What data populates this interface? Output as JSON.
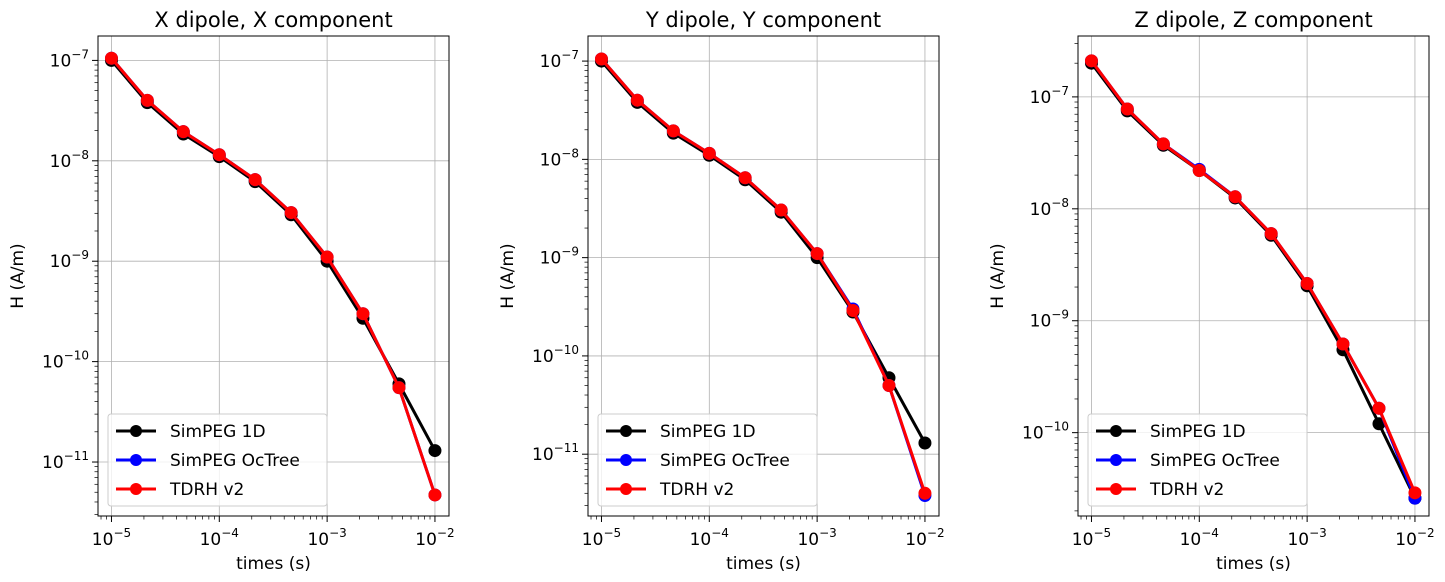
{
  "chart_data": [
    {
      "type": "line",
      "title": "X dipole, X component",
      "xlabel": "times (s)",
      "ylabel": "H (A/m)",
      "xscale": "log",
      "yscale": "log",
      "xlim": [
        7.5e-06,
        0.0135
      ],
      "ylim": [
        2.9e-12,
        1.75e-07
      ],
      "xticks": [
        1e-05,
        0.0001,
        0.001,
        0.01
      ],
      "xtick_labels": [
        {
          "base": "10",
          "exp": "−5"
        },
        {
          "base": "10",
          "exp": "−4"
        },
        {
          "base": "10",
          "exp": "−3"
        },
        {
          "base": "10",
          "exp": "−2"
        }
      ],
      "yticks": [
        1e-11,
        1e-10,
        1e-09,
        1e-08,
        1e-07
      ],
      "ytick_labels": [
        {
          "base": "10",
          "exp": "−11"
        },
        {
          "base": "10",
          "exp": "−10"
        },
        {
          "base": "10",
          "exp": "−9"
        },
        {
          "base": "10",
          "exp": "−8"
        },
        {
          "base": "10",
          "exp": "−7"
        }
      ],
      "grid": true,
      "legend_position": "lower-left",
      "x": [
        1e-05,
        2.15e-05,
        4.64e-05,
        0.0001,
        0.000215,
        0.000464,
        0.001,
        0.00215,
        0.00464,
        0.01
      ],
      "series": [
        {
          "name": "SimPEG 1D",
          "color": "#000000",
          "values": [
            1e-07,
            3.8e-08,
            1.85e-08,
            1.1e-08,
            6.2e-09,
            2.9e-09,
            1e-09,
            2.7e-10,
            6e-11,
            1.3e-11
          ]
        },
        {
          "name": "SimPEG OcTree",
          "color": "#0000ff",
          "values": [
            1.05e-07,
            4e-08,
            1.95e-08,
            1.15e-08,
            6.5e-09,
            3.05e-09,
            1.1e-09,
            3e-10,
            5.5e-11,
            4.7e-12
          ]
        },
        {
          "name": "TDRH v2",
          "color": "#ff0000",
          "values": [
            1.05e-07,
            4e-08,
            1.95e-08,
            1.15e-08,
            6.5e-09,
            3.05e-09,
            1.1e-09,
            3e-10,
            5.5e-11,
            4.7e-12
          ]
        }
      ]
    },
    {
      "type": "line",
      "title": "Y dipole, Y component",
      "xlabel": "times (s)",
      "ylabel": "H (A/m)",
      "xscale": "log",
      "yscale": "log",
      "xlim": [
        7.5e-06,
        0.0135
      ],
      "ylim": [
        2.35e-12,
        1.8e-07
      ],
      "xticks": [
        1e-05,
        0.0001,
        0.001,
        0.01
      ],
      "xtick_labels": [
        {
          "base": "10",
          "exp": "−5"
        },
        {
          "base": "10",
          "exp": "−4"
        },
        {
          "base": "10",
          "exp": "−3"
        },
        {
          "base": "10",
          "exp": "−2"
        }
      ],
      "yticks": [
        1e-11,
        1e-10,
        1e-09,
        1e-08,
        1e-07
      ],
      "ytick_labels": [
        {
          "base": "10",
          "exp": "−11"
        },
        {
          "base": "10",
          "exp": "−10"
        },
        {
          "base": "10",
          "exp": "−9"
        },
        {
          "base": "10",
          "exp": "−8"
        },
        {
          "base": "10",
          "exp": "−7"
        }
      ],
      "grid": true,
      "legend_position": "lower-left",
      "x": [
        1e-05,
        2.15e-05,
        4.64e-05,
        0.0001,
        0.000215,
        0.000464,
        0.001,
        0.00215,
        0.00464,
        0.01
      ],
      "series": [
        {
          "name": "SimPEG 1D",
          "color": "#000000",
          "values": [
            1e-07,
            3.8e-08,
            1.85e-08,
            1.1e-08,
            6.2e-09,
            2.9e-09,
            1e-09,
            2.8e-10,
            6e-11,
            1.3e-11
          ]
        },
        {
          "name": "SimPEG OcTree",
          "color": "#0000ff",
          "values": [
            1.05e-07,
            4e-08,
            1.95e-08,
            1.15e-08,
            6.5e-09,
            3.05e-09,
            1.1e-09,
            3e-10,
            5e-11,
            3.8e-12
          ]
        },
        {
          "name": "TDRH v2",
          "color": "#ff0000",
          "values": [
            1.05e-07,
            4e-08,
            1.95e-08,
            1.15e-08,
            6.5e-09,
            3.05e-09,
            1.1e-09,
            2.9e-10,
            5e-11,
            4e-12
          ]
        }
      ]
    },
    {
      "type": "line",
      "title": "Z dipole, Z component",
      "xlabel": "times (s)",
      "ylabel": "H (A/m)",
      "xscale": "log",
      "yscale": "log",
      "xlim": [
        7.5e-06,
        0.0135
      ],
      "ylim": [
        1.8e-11,
        3.5e-07
      ],
      "xticks": [
        1e-05,
        0.0001,
        0.001,
        0.01
      ],
      "xtick_labels": [
        {
          "base": "10",
          "exp": "−5"
        },
        {
          "base": "10",
          "exp": "−4"
        },
        {
          "base": "10",
          "exp": "−3"
        },
        {
          "base": "10",
          "exp": "−2"
        }
      ],
      "yticks": [
        1e-10,
        1e-09,
        1e-08,
        1e-07
      ],
      "ytick_labels": [
        {
          "base": "10",
          "exp": "−10"
        },
        {
          "base": "10",
          "exp": "−9"
        },
        {
          "base": "10",
          "exp": "−8"
        },
        {
          "base": "10",
          "exp": "−7"
        }
      ],
      "grid": true,
      "legend_position": "lower-left",
      "x": [
        1e-05,
        2.15e-05,
        4.64e-05,
        0.0001,
        0.000215,
        0.000464,
        0.001,
        0.00215,
        0.00464,
        0.01
      ],
      "series": [
        {
          "name": "SimPEG 1D",
          "color": "#000000",
          "values": [
            2e-07,
            7.5e-08,
            3.7e-08,
            2.2e-08,
            1.25e-08,
            5.8e-09,
            2.05e-09,
            5.5e-10,
            1.2e-10,
            2.6e-11
          ]
        },
        {
          "name": "SimPEG OcTree",
          "color": "#0000ff",
          "values": [
            2.1e-07,
            7.8e-08,
            3.8e-08,
            2.25e-08,
            1.28e-08,
            6e-09,
            2.15e-09,
            6.2e-10,
            1.65e-10,
            2.6e-11
          ]
        },
        {
          "name": "TDRH v2",
          "color": "#ff0000",
          "values": [
            2.1e-07,
            7.8e-08,
            3.8e-08,
            2.2e-08,
            1.28e-08,
            6e-09,
            2.15e-09,
            6.2e-10,
            1.65e-10,
            2.9e-11
          ]
        }
      ]
    }
  ]
}
